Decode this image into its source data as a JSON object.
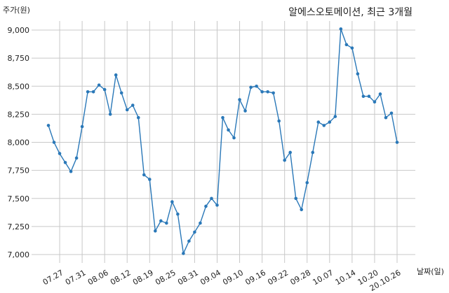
{
  "chart_data": {
    "type": "line",
    "title": "알에스오토메이션, 최근 3개월",
    "ylabel": "주가(원)",
    "xlabel": "날짜(일)",
    "ylim": [
      6950,
      9100
    ],
    "yticks": [
      7000,
      7250,
      7500,
      7750,
      8000,
      8250,
      8500,
      8750,
      9000
    ],
    "ytick_labels": [
      "7,000",
      "7,250",
      "7,500",
      "7,750",
      "8,000",
      "8,250",
      "8,500",
      "8,750",
      "9,000"
    ],
    "xtick_labels": [
      "07.27",
      "07.31",
      "08.06",
      "08.12",
      "08.19",
      "08.25",
      "08.31",
      "09.04",
      "09.10",
      "09.16",
      "09.22",
      "09.28",
      "10.07",
      "10.14",
      "10.20",
      "20.10.26"
    ],
    "xtick_indices": [
      2,
      6,
      10,
      14,
      18,
      22,
      26,
      30,
      34,
      38,
      42,
      46,
      50,
      54,
      58,
      62
    ],
    "grid": true,
    "line_color": "#2a78b8",
    "series": [
      {
        "values": [
          8150,
          8000,
          7900,
          7820,
          7740,
          7860,
          8140,
          8450,
          8450,
          8510,
          8470,
          8250,
          8600,
          8440,
          8290,
          8330,
          8220,
          7710,
          7670,
          7210,
          7300,
          7280,
          7470,
          7360,
          7010,
          7120,
          7200,
          7280,
          7430,
          7500,
          7440,
          8220,
          8110,
          8040,
          8380,
          8280,
          8490,
          8500,
          8450,
          8450,
          8440,
          8190,
          7840,
          7910,
          7500,
          7400,
          7640,
          7910,
          8180,
          8150,
          8180,
          8230,
          9010,
          8870,
          8840,
          8610,
          8410,
          8410,
          8360,
          8430,
          8220,
          8260,
          8000
        ]
      }
    ]
  }
}
